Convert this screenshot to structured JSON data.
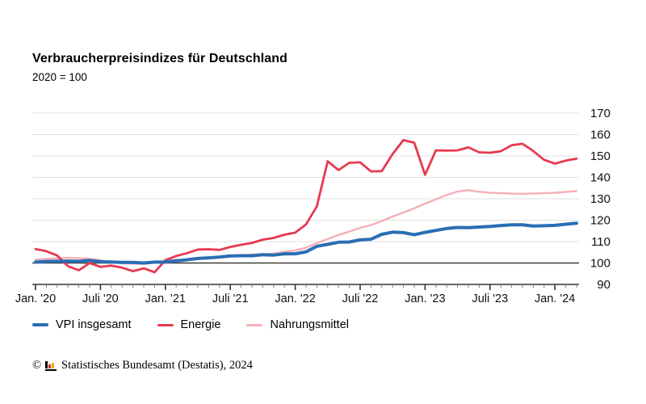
{
  "header": {
    "title": "Verbraucherpreisindizes für Deutschland",
    "subtitle": "2020 = 100"
  },
  "chart_data": {
    "type": "line",
    "title": "Verbraucherpreisindizes für Deutschland",
    "subtitle": "2020 = 100",
    "months_total": 51,
    "x_start": "Jan. 2020",
    "x_end": "März 2024",
    "x_tick_labels": [
      "Jan. '20",
      "Juli '20",
      "Jan. '21",
      "Juli '21",
      "Jan. '22",
      "Juli '22",
      "Jan. '23",
      "Juli '23",
      "Jan. '24"
    ],
    "x_tick_months": [
      0,
      6,
      12,
      18,
      24,
      30,
      36,
      42,
      48
    ],
    "ylim": [
      90,
      170
    ],
    "y_ticks": [
      90,
      100,
      110,
      120,
      130,
      140,
      150,
      160,
      170
    ],
    "baseline_value": 100,
    "grid": true,
    "legend_position": "bottom",
    "series": [
      {
        "name": "VPI insgesamt",
        "color": "#2a6eb4",
        "width": 4,
        "values": [
          100.4,
          100.7,
          100.8,
          100.9,
          100.8,
          101.2,
          100.6,
          100.5,
          100.3,
          100.3,
          100.0,
          100.4,
          100.5,
          101.0,
          101.5,
          102.1,
          102.4,
          102.8,
          103.3,
          103.4,
          103.4,
          103.9,
          103.7,
          104.3,
          104.3,
          105.2,
          107.8,
          108.7,
          109.7,
          109.8,
          110.8,
          111.1,
          113.4,
          114.4,
          114.2,
          113.2,
          114.3,
          115.2,
          116.1,
          116.6,
          116.5,
          116.8,
          117.1,
          117.5,
          117.8,
          117.8,
          117.3,
          117.4,
          117.6,
          118.1,
          118.6
        ]
      },
      {
        "name": "Energie",
        "color": "#e73950",
        "width": 2.8,
        "values": [
          106.5,
          105.5,
          103.5,
          98.5,
          96.6,
          100.0,
          98.2,
          98.8,
          97.8,
          96.2,
          97.5,
          95.7,
          101.3,
          103.3,
          104.6,
          106.3,
          106.4,
          106.1,
          107.5,
          108.5,
          109.4,
          110.9,
          111.7,
          113.2,
          114.2,
          118.0,
          126.5,
          147.5,
          143.4,
          146.8,
          147.0,
          142.8,
          142.9,
          150.9,
          157.4,
          156.2,
          141.2,
          152.6,
          152.5,
          152.6,
          154.0,
          151.7,
          151.5,
          152.2,
          155.0,
          155.7,
          152.3,
          148.2,
          146.4,
          147.8,
          148.7
        ]
      },
      {
        "name": "Nahrungsmittel",
        "color": "#f6b0b7",
        "width": 2.4,
        "values": [
          101.6,
          101.9,
          102.2,
          102.4,
          102.3,
          102.0,
          101.3,
          100.4,
          99.8,
          99.7,
          99.6,
          100.1,
          101.0,
          101.6,
          101.3,
          101.9,
          102.2,
          102.6,
          103.3,
          103.7,
          103.9,
          104.1,
          104.4,
          105.2,
          105.9,
          107.1,
          109.3,
          111.2,
          113.1,
          114.7,
          116.4,
          117.7,
          119.6,
          121.7,
          123.6,
          125.5,
          127.7,
          129.7,
          131.8,
          133.4,
          134.0,
          133.3,
          132.8,
          132.6,
          132.4,
          132.3,
          132.4,
          132.6,
          132.8,
          133.2,
          133.6
        ]
      }
    ]
  },
  "styles": {
    "gridline_color": "#e0e0e0",
    "baseline_color": "#3a3a3a",
    "axis_color": "#333333",
    "tick_color": "#777777",
    "label_color": "#111111"
  },
  "footer": {
    "copyright_symbol": "©",
    "source": "Statistisches Bundesamt (Destatis), 2024"
  }
}
